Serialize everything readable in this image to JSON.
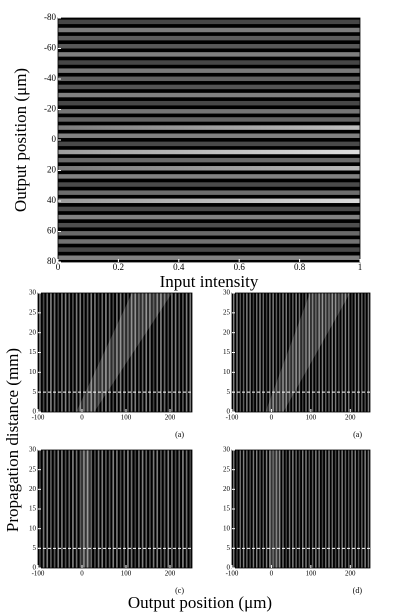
{
  "chart_data": [
    {
      "type": "heatmap",
      "x_label": "Input intensity",
      "y_label": "Output position (μm)",
      "xlim": [
        0,
        1
      ],
      "xticks": [
        0,
        0.2,
        0.4,
        0.6,
        0.8,
        1
      ],
      "ylim": [
        -80,
        80
      ],
      "yticks": [
        -80,
        -60,
        -40,
        -20,
        0,
        20,
        40,
        60,
        80
      ],
      "y_inverted": true
    },
    {
      "type": "heatmap",
      "panel_label": "(a)",
      "xlim": [
        -100,
        250
      ],
      "xticks": [
        -100,
        0,
        100,
        200
      ],
      "ylim": [
        0,
        30
      ],
      "yticks": [
        0,
        5,
        10,
        15,
        20,
        25,
        30
      ],
      "reference_line": 5
    },
    {
      "type": "heatmap",
      "panel_label": "(a)",
      "xlim": [
        -100,
        250
      ],
      "xticks": [
        -100,
        0,
        100,
        200
      ],
      "ylim": [
        0,
        30
      ],
      "yticks": [
        0,
        5,
        10,
        15,
        20,
        25,
        30
      ],
      "reference_line": 5
    },
    {
      "type": "heatmap",
      "panel_label": "(c)",
      "xlim": [
        -100,
        250
      ],
      "xticks": [
        -100,
        0,
        100,
        200
      ],
      "ylim": [
        0,
        30
      ],
      "yticks": [
        0,
        5,
        10,
        15,
        20,
        25,
        30
      ],
      "reference_line": 5
    },
    {
      "type": "heatmap",
      "panel_label": "(d)",
      "xlim": [
        -100,
        250
      ],
      "xticks": [
        -100,
        0,
        100,
        200
      ],
      "ylim": [
        0,
        30
      ],
      "yticks": [
        0,
        5,
        10,
        15,
        20,
        25,
        30
      ],
      "reference_line": 5
    }
  ],
  "shared_labels": {
    "y_label": "Propagation distance (mm)",
    "x_label": "Output position (μm)"
  }
}
